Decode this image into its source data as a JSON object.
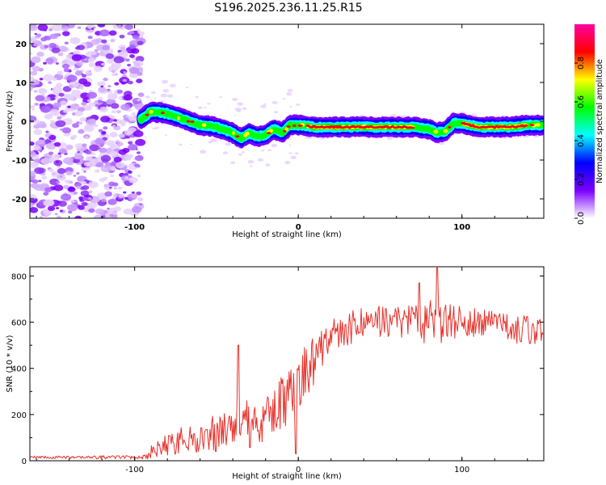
{
  "title": "S196.2025.236.11.25.R15",
  "chart_data": [
    {
      "type": "heatmap",
      "xlabel": "Height of straight line (km)",
      "ylabel": "Frequency (Hz)",
      "xlim": [
        -164,
        150
      ],
      "ylim": [
        -25,
        25
      ],
      "x_ticks": [
        -100,
        0,
        100
      ],
      "y_ticks": [
        -20,
        -10,
        0,
        10,
        20
      ],
      "x_tick_labels": [
        "-100",
        "0",
        "100"
      ],
      "y_tick_labels": [
        "-20",
        "-10",
        "0",
        "10",
        "20"
      ],
      "noise_region_x": [
        -164,
        -96
      ],
      "ridge_centerline": [
        [
          -96,
          0.5
        ],
        [
          -90,
          2.5
        ],
        [
          -80,
          2.0
        ],
        [
          -70,
          0.5
        ],
        [
          -60,
          -1.0
        ],
        [
          -50,
          -1.5
        ],
        [
          -40,
          -3.0
        ],
        [
          -35,
          -4.5
        ],
        [
          -30,
          -3.0
        ],
        [
          -25,
          -4.0
        ],
        [
          -20,
          -3.5
        ],
        [
          -15,
          -2.0
        ],
        [
          -10,
          -3.0
        ],
        [
          -5,
          -1.0
        ],
        [
          0,
          -1.0
        ],
        [
          10,
          -1.5
        ],
        [
          20,
          -1.5
        ],
        [
          40,
          -1.5
        ],
        [
          60,
          -1.5
        ],
        [
          70,
          -1.5
        ],
        [
          80,
          -2.0
        ],
        [
          85,
          -3.0
        ],
        [
          90,
          -2.5
        ],
        [
          95,
          -0.5
        ],
        [
          100,
          -0.5
        ],
        [
          110,
          -1.5
        ],
        [
          120,
          -1.5
        ],
        [
          130,
          -1.5
        ],
        [
          140,
          -1.0
        ],
        [
          150,
          -1.0
        ]
      ],
      "colorbar": {
        "label": "Normalized spectral amplitude",
        "range": [
          0,
          1
        ],
        "ticks": [
          "0.0",
          "0.2",
          "0.4",
          "0.6",
          "0.8"
        ],
        "colors": [
          "#ffffff",
          "#7b00ff",
          "#0000ff",
          "#00ffff",
          "#00ff00",
          "#ffff00",
          "#ff0000",
          "#ff00a0"
        ]
      }
    },
    {
      "type": "line",
      "xlabel": "Height of straight line (km)",
      "ylabel": "SNR (10 * v/v)",
      "xlim": [
        -164,
        150
      ],
      "ylim": [
        0,
        840
      ],
      "x_ticks": [
        -100,
        0,
        100
      ],
      "y_ticks": [
        0,
        200,
        400,
        600,
        800
      ],
      "x_tick_labels": [
        "-100",
        "0",
        "100"
      ],
      "y_tick_labels": [
        "0",
        "200",
        "400",
        "600",
        "800"
      ],
      "series": [
        {
          "name": "SNR",
          "color": "#e8302a",
          "trend": {
            "x": [
              -164,
              -120,
              -95,
              -88,
              -80,
              -70,
              -60,
              -50,
              -40,
              -35,
              -30,
              -25,
              -20,
              -10,
              0,
              5,
              10,
              20,
              40,
              60,
              80,
              100,
              120,
              150
            ],
            "y": [
              15,
              15,
              15,
              40,
              70,
              90,
              100,
              120,
              160,
              200,
              140,
              120,
              190,
              260,
              350,
              400,
              450,
              540,
              600,
              610,
              600,
              600,
              580,
              560
            ]
          },
          "amplitude": {
            "x": [
              -164,
              -95,
              -88,
              -60,
              -40,
              -20,
              0,
              20,
              60,
              80,
              100,
              150
            ],
            "y": [
              6,
              8,
              40,
              70,
              90,
              120,
              150,
              80,
              70,
              100,
              70,
              60
            ]
          },
          "spikes": [
            {
              "x": -36.5,
              "y": 500
            },
            {
              "x": -1.5,
              "y": 30
            },
            {
              "x": 85,
              "y": 835
            },
            {
              "x": 74,
              "y": 770
            }
          ]
        }
      ]
    }
  ]
}
